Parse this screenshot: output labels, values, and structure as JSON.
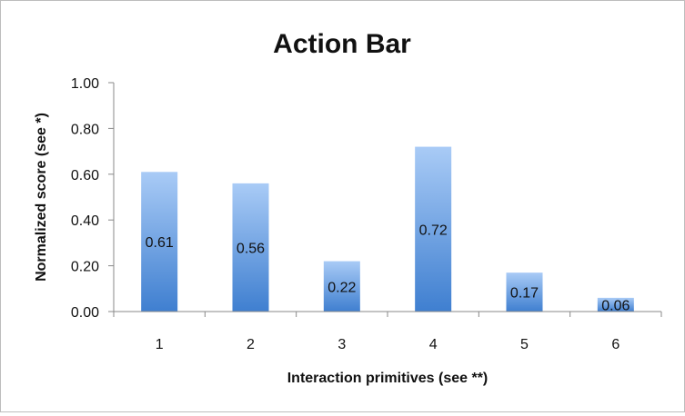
{
  "chart_data": {
    "type": "bar",
    "title": "Action Bar",
    "xlabel": "Interaction primitives (see **)",
    "ylabel": "Normalized score (see *)",
    "categories": [
      "1",
      "2",
      "3",
      "4",
      "5",
      "6"
    ],
    "values": [
      0.61,
      0.56,
      0.22,
      0.72,
      0.17,
      0.06
    ],
    "data_labels": [
      "0.61",
      "0.56",
      "0.22",
      "0.72",
      "0.17",
      "0.06"
    ],
    "ylim": [
      0,
      1.0
    ],
    "yticks": [
      "0.00",
      "0.20",
      "0.40",
      "0.60",
      "0.80",
      "1.00"
    ],
    "grid": false,
    "legend": "none",
    "colors": {
      "bar_top": "#a9cbf6",
      "bar_bottom": "#3f7fd0",
      "axis": "#888888"
    }
  }
}
